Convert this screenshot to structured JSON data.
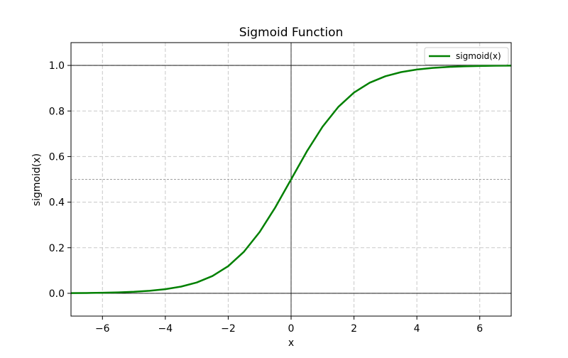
{
  "chart_data": {
    "type": "line",
    "title": "Sigmoid Function",
    "xlabel": "x",
    "ylabel": "sigmoid(x)",
    "xlim": [
      -7,
      7
    ],
    "ylim": [
      -0.1,
      1.1
    ],
    "x_ticks": [
      -6,
      -4,
      -2,
      0,
      2,
      4,
      6
    ],
    "x_tick_labels": [
      "−6",
      "−4",
      "−2",
      "0",
      "2",
      "4",
      "6"
    ],
    "y_ticks": [
      0.0,
      0.2,
      0.4,
      0.6,
      0.8,
      1.0
    ],
    "y_tick_labels": [
      "0.0",
      "0.2",
      "0.4",
      "0.6",
      "0.8",
      "1.0"
    ],
    "grid": true,
    "legend_position": "top-right",
    "series": [
      {
        "name": "sigmoid(x)",
        "color": "#008000",
        "x": [
          -7,
          -6.5,
          -6,
          -5.5,
          -5,
          -4.5,
          -4,
          -3.5,
          -3,
          -2.5,
          -2,
          -1.5,
          -1,
          -0.5,
          0,
          0.5,
          1,
          1.5,
          2,
          2.5,
          3,
          3.5,
          4,
          4.5,
          5,
          5.5,
          6,
          6.5,
          7
        ],
        "values": [
          0.0009,
          0.0015,
          0.0025,
          0.0041,
          0.0067,
          0.011,
          0.018,
          0.0293,
          0.0474,
          0.0759,
          0.1192,
          0.1824,
          0.2689,
          0.3775,
          0.5,
          0.6225,
          0.7311,
          0.8176,
          0.8808,
          0.9241,
          0.9526,
          0.9707,
          0.982,
          0.989,
          0.9933,
          0.9959,
          0.9975,
          0.9985,
          0.9991
        ]
      }
    ],
    "reference_lines": {
      "horizontal": [
        0,
        0.5,
        1
      ],
      "vertical": [
        0
      ]
    }
  }
}
